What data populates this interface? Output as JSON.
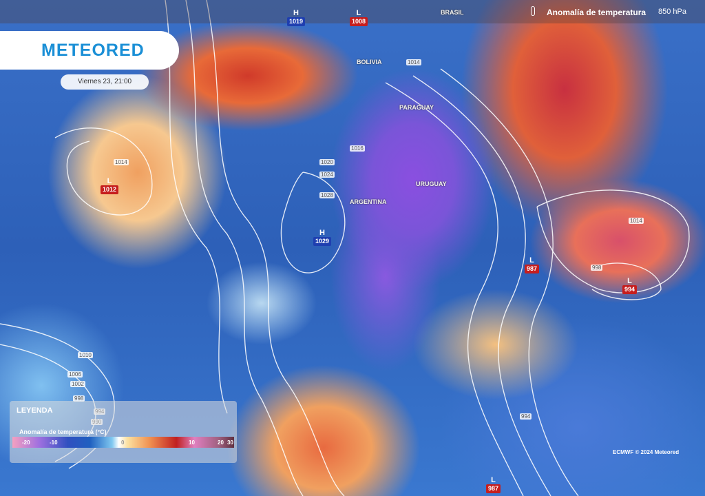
{
  "header": {
    "title": "Anomalía de temperatura",
    "level": "850 hPa",
    "icon": "thermometer-icon"
  },
  "brand": {
    "logo": "METEORED",
    "color": "#1a8fd6"
  },
  "date": "Viernes 23, 21:00",
  "countries": [
    "BRASIL",
    "BOLIVIA",
    "PARAGUAY",
    "URUGUAY",
    "ARGENTINA"
  ],
  "pressure_centers": [
    {
      "type": "H",
      "value": "1019"
    },
    {
      "type": "L",
      "value": "1008"
    },
    {
      "type": "L",
      "value": "1012"
    },
    {
      "type": "H",
      "value": "1029"
    },
    {
      "type": "L",
      "value": "987"
    },
    {
      "type": "L",
      "value": "994"
    },
    {
      "type": "L",
      "value": "987"
    }
  ],
  "isobar_labels": [
    "1014",
    "1014",
    "1016",
    "1020",
    "1024",
    "1028",
    "1014",
    "998",
    "1010",
    "1006",
    "1002",
    "998",
    "994",
    "990",
    "994"
  ],
  "legend": {
    "title": "LEYENDA",
    "subtitle": "Anomalía de temperatura (°C)",
    "ticks": [
      "-20",
      "-10",
      "0",
      "10",
      "20",
      "30"
    ]
  },
  "credit": "ECMWF © 2024 Meteored",
  "colors": {
    "high": "#1f3fb0",
    "low": "#c61e1e"
  }
}
